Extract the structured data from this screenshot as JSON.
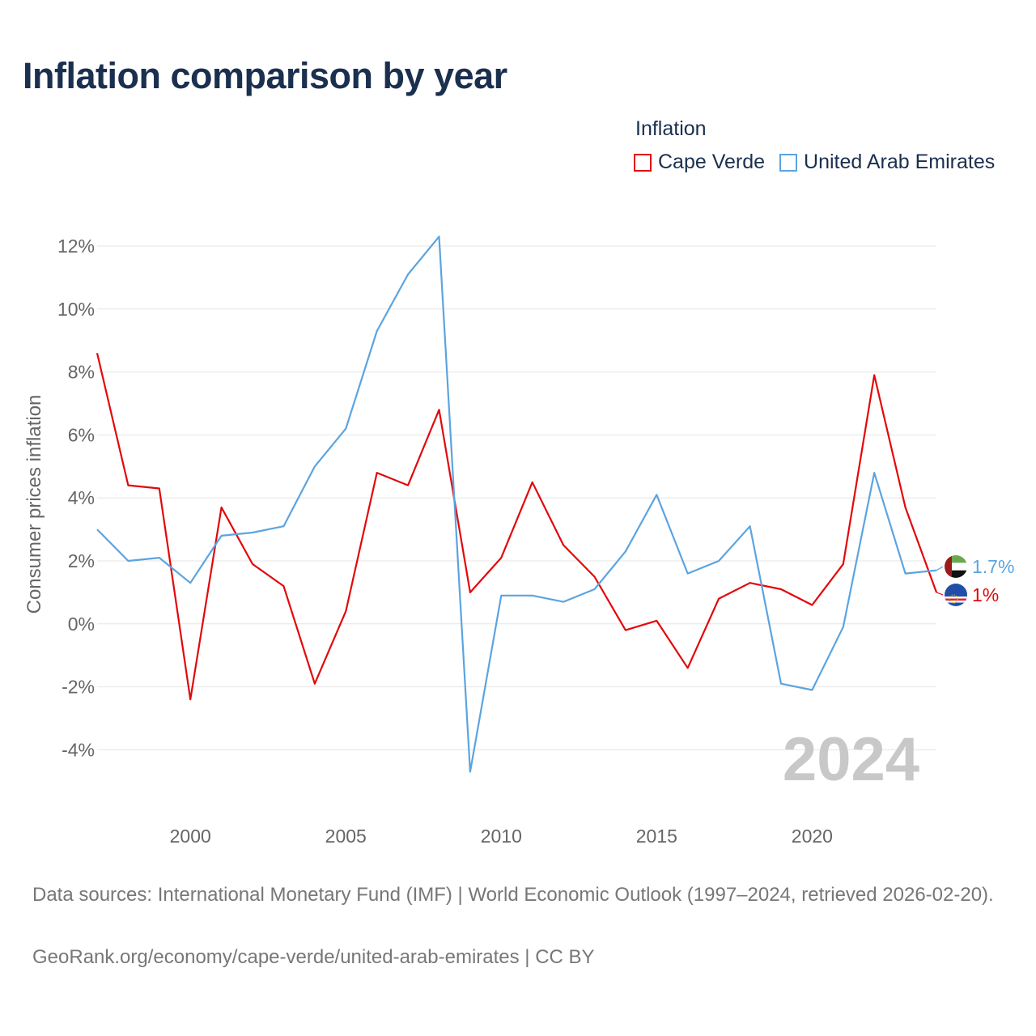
{
  "title": "Inflation comparison by year",
  "legend": {
    "title": "Inflation",
    "items": [
      {
        "label": "Cape Verde",
        "color": "#e3070a"
      },
      {
        "label": "United Arab Emirates",
        "color": "#5ba4e0"
      }
    ]
  },
  "chart_data": {
    "type": "line",
    "title": "Inflation comparison by year",
    "xlabel": "",
    "ylabel": "Consumer prices inflation",
    "xlim": [
      1997,
      2024
    ],
    "ylim": [
      -5.5,
      12.5
    ],
    "x_ticks": [
      2000,
      2005,
      2010,
      2015,
      2020
    ],
    "x_tick_labels": [
      "2000",
      "2005",
      "2010",
      "2015",
      "2020"
    ],
    "y_ticks": [
      -4,
      -2,
      0,
      2,
      4,
      6,
      8,
      10,
      12
    ],
    "y_tick_labels": [
      "-4%",
      "-2%",
      "0%",
      "2%",
      "4%",
      "6%",
      "8%",
      "10%",
      "12%"
    ],
    "x": [
      1997,
      1998,
      1999,
      2000,
      2001,
      2002,
      2003,
      2004,
      2005,
      2006,
      2007,
      2008,
      2009,
      2010,
      2011,
      2012,
      2013,
      2014,
      2015,
      2016,
      2017,
      2018,
      2019,
      2020,
      2021,
      2022,
      2023,
      2024
    ],
    "series": [
      {
        "name": "Cape Verde",
        "color": "#e3070a",
        "end_label": "1%",
        "values": [
          8.6,
          4.4,
          4.3,
          -2.4,
          3.7,
          1.9,
          1.2,
          -1.9,
          0.4,
          4.8,
          4.4,
          6.8,
          1.0,
          2.1,
          4.5,
          2.5,
          1.5,
          -0.2,
          0.1,
          -1.4,
          0.8,
          1.3,
          1.1,
          0.6,
          1.9,
          7.9,
          3.7,
          1.0
        ]
      },
      {
        "name": "United Arab Emirates",
        "color": "#5ba4e0",
        "end_label": "1.7%",
        "values": [
          3.0,
          2.0,
          2.1,
          1.3,
          2.8,
          2.9,
          3.1,
          5.0,
          6.2,
          9.3,
          11.1,
          12.3,
          -4.7,
          0.9,
          0.9,
          0.7,
          1.1,
          2.3,
          4.1,
          1.6,
          2.0,
          3.1,
          -1.9,
          -2.1,
          -0.1,
          4.8,
          1.6,
          1.7
        ]
      }
    ],
    "grid": true,
    "year_watermark": "2024"
  },
  "footer": {
    "sources": "Data sources: International Monetary Fund (IMF) | World Economic Outlook (1997–2024, retrieved 2026-02-20).",
    "credit": "GeoRank.org/economy/cape-verde/united-arab-emirates | CC BY"
  }
}
